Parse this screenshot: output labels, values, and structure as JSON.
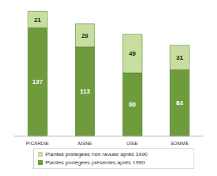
{
  "chart_data": {
    "type": "bar",
    "stacked": true,
    "data_labels": true,
    "tick_labels": "x",
    "grid": false,
    "legend": "bottom",
    "categories": [
      "PICARDIE",
      "AISNE",
      "OISE",
      "SOMME"
    ],
    "series": [
      {
        "name": "Plantes protégées présentes après 1990",
        "color": "#6e9b3c",
        "values": [
          137,
          113,
          80,
          84
        ]
      },
      {
        "name": "Plantes protégées non revues après 1990",
        "color": "#c8dea0",
        "values": [
          21,
          29,
          49,
          31
        ]
      }
    ]
  }
}
